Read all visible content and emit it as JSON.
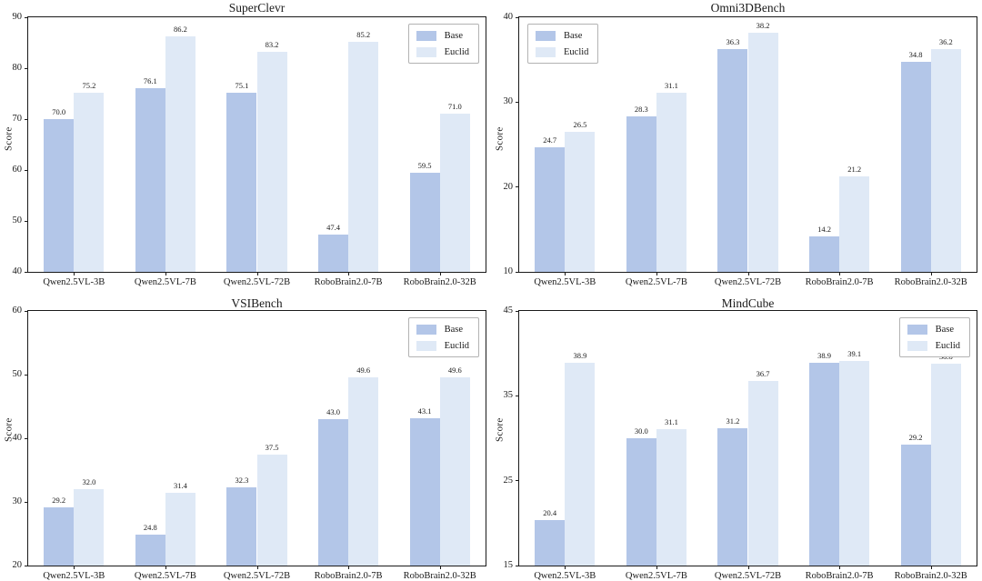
{
  "figure": {
    "series_labels": [
      "Base",
      "Euclid"
    ],
    "colors": {
      "base": "#b3c6e8",
      "euclid": "#dfe9f6",
      "spine": "#1a1a1a"
    }
  },
  "chart_data": [
    {
      "type": "bar",
      "title": "SuperClevr",
      "xlabel": "",
      "ylabel": "Score",
      "categories": [
        "Qwen2.5VL-3B",
        "Qwen2.5VL-7B",
        "Qwen2.5VL-72B",
        "RoboBrain2.0-7B",
        "RoboBrain2.0-32B"
      ],
      "series": [
        {
          "name": "Base",
          "color": "#b3c6e8",
          "values": [
            70.0,
            76.1,
            75.1,
            47.4,
            59.5
          ]
        },
        {
          "name": "Euclid",
          "color": "#dfe9f6",
          "values": [
            75.2,
            86.2,
            83.2,
            85.2,
            71.0
          ]
        }
      ],
      "ylim": [
        40,
        90
      ],
      "yticks": [
        40,
        50,
        60,
        70,
        80,
        90
      ],
      "grid": false,
      "legend_position": "top-right"
    },
    {
      "type": "bar",
      "title": "Omni3DBench",
      "xlabel": "",
      "ylabel": "Score",
      "categories": [
        "Qwen2.5VL-3B",
        "Qwen2.5VL-7B",
        "Qwen2.5VL-72B",
        "RoboBrain2.0-7B",
        "RoboBrain2.0-32B"
      ],
      "series": [
        {
          "name": "Base",
          "color": "#b3c6e8",
          "values": [
            24.7,
            28.3,
            36.3,
            14.2,
            34.8
          ]
        },
        {
          "name": "Euclid",
          "color": "#dfe9f6",
          "values": [
            26.5,
            31.1,
            38.2,
            21.2,
            36.2
          ]
        }
      ],
      "ylim": [
        10,
        40
      ],
      "yticks": [
        10,
        20,
        30,
        40
      ],
      "grid": false,
      "legend_position": "top-left"
    },
    {
      "type": "bar",
      "title": "VSIBench",
      "xlabel": "",
      "ylabel": "Score",
      "categories": [
        "Qwen2.5VL-3B",
        "Qwen2.5VL-7B",
        "Qwen2.5VL-72B",
        "RoboBrain2.0-7B",
        "RoboBrain2.0-32B"
      ],
      "series": [
        {
          "name": "Base",
          "color": "#b3c6e8",
          "values": [
            29.2,
            24.8,
            32.3,
            43.0,
            43.1
          ]
        },
        {
          "name": "Euclid",
          "color": "#dfe9f6",
          "values": [
            32.0,
            31.4,
            37.5,
            49.6,
            49.6
          ]
        }
      ],
      "ylim": [
        20,
        60
      ],
      "yticks": [
        20,
        30,
        40,
        50,
        60
      ],
      "grid": false,
      "legend_position": "top-right"
    },
    {
      "type": "bar",
      "title": "MindCube",
      "xlabel": "",
      "ylabel": "Score",
      "categories": [
        "Qwen2.5VL-3B",
        "Qwen2.5VL-7B",
        "Qwen2.5VL-72B",
        "RoboBrain2.0-7B",
        "RoboBrain2.0-32B"
      ],
      "series": [
        {
          "name": "Base",
          "color": "#b3c6e8",
          "values": [
            20.4,
            30.0,
            31.2,
            38.9,
            29.2
          ]
        },
        {
          "name": "Euclid",
          "color": "#dfe9f6",
          "values": [
            38.9,
            31.1,
            36.7,
            39.1,
            38.8
          ]
        }
      ],
      "ylim": [
        15,
        45
      ],
      "yticks": [
        15,
        25,
        35,
        45
      ],
      "grid": false,
      "legend_position": "top-right"
    }
  ]
}
